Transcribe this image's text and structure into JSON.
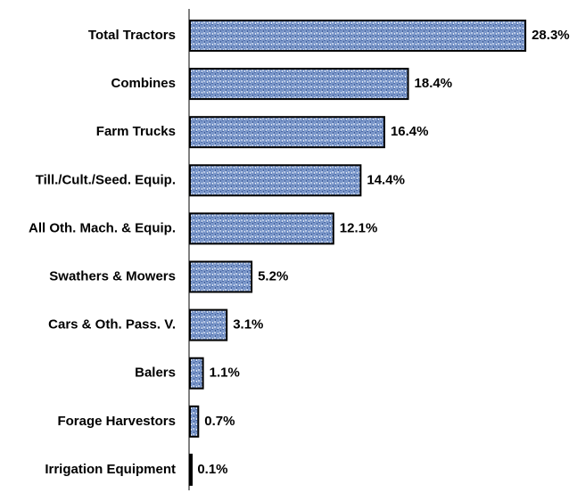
{
  "chart_data": {
    "type": "bar",
    "orientation": "horizontal",
    "categories": [
      "Total Tractors",
      "Combines",
      "Farm Trucks",
      "Till./Cult./Seed. Equip.",
      "All Oth. Mach. & Equip.",
      "Swathers & Mowers",
      "Cars & Oth. Pass. V.",
      "Balers",
      "Forage Harvestors",
      "Irrigation Equipment"
    ],
    "values": [
      28.3,
      18.4,
      16.4,
      14.4,
      12.1,
      5.2,
      3.1,
      1.1,
      0.7,
      0.1
    ],
    "value_labels": [
      "28.3%",
      "18.4%",
      "16.4%",
      "14.4%",
      "12.1%",
      "5.2%",
      "3.1%",
      "1.1%",
      "0.7%",
      "0.1%"
    ],
    "color": "#6f8fc6"
  }
}
